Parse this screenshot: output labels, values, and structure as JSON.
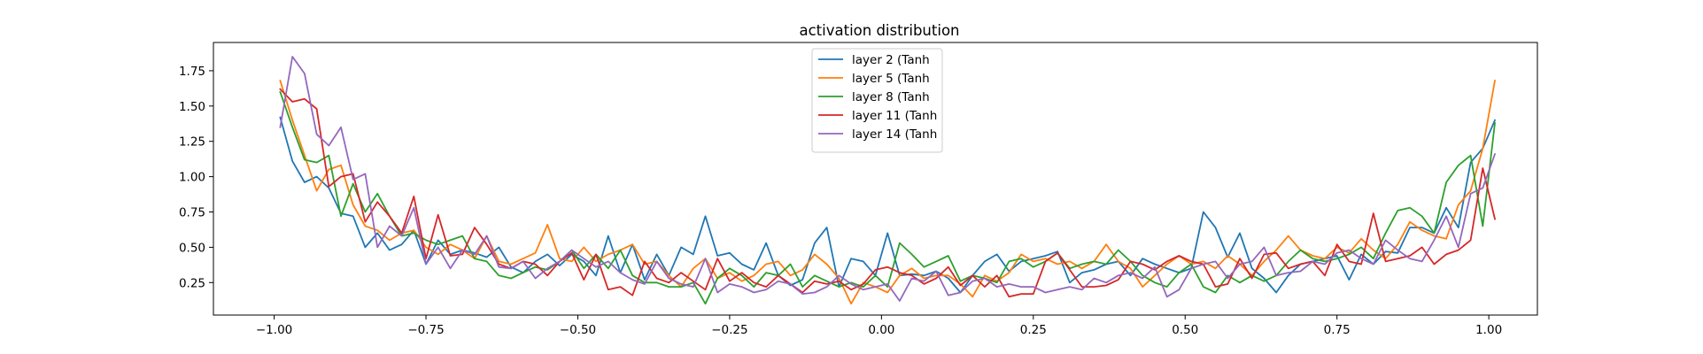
{
  "chart_data": {
    "type": "line",
    "title": "activation distribution",
    "xlabel": "",
    "ylabel": "",
    "xlim": [
      -1.1,
      1.08
    ],
    "ylim": [
      0.02,
      1.95
    ],
    "xticks": [
      -1.0,
      -0.75,
      -0.5,
      -0.25,
      0.0,
      0.25,
      0.5,
      0.75,
      1.0
    ],
    "xtick_labels": [
      "−1.00",
      "−0.75",
      "−0.50",
      "−0.25",
      "0.00",
      "0.25",
      "0.50",
      "0.75",
      "1.00"
    ],
    "yticks": [
      0.25,
      0.5,
      0.75,
      1.0,
      1.25,
      1.5,
      1.75
    ],
    "ytick_labels": [
      "0.25",
      "0.50",
      "0.75",
      "1.00",
      "1.25",
      "1.50",
      "1.75"
    ],
    "grid": false,
    "legend_position": "top-center",
    "x_start": -0.99,
    "x_step": 0.02,
    "series": [
      {
        "name": "layer 2 (Tanh",
        "color": "#1f77b4",
        "values": [
          1.42,
          1.11,
          0.96,
          1.0,
          0.92,
          0.74,
          0.72,
          0.5,
          0.6,
          0.48,
          0.52,
          0.62,
          0.38,
          0.55,
          0.45,
          0.48,
          0.46,
          0.43,
          0.5,
          0.36,
          0.32,
          0.4,
          0.45,
          0.37,
          0.45,
          0.4,
          0.3,
          0.58,
          0.32,
          0.52,
          0.27,
          0.45,
          0.3,
          0.5,
          0.45,
          0.72,
          0.44,
          0.46,
          0.38,
          0.34,
          0.53,
          0.3,
          0.23,
          0.27,
          0.53,
          0.64,
          0.22,
          0.42,
          0.4,
          0.3,
          0.6,
          0.3,
          0.31,
          0.3,
          0.33,
          0.28,
          0.18,
          0.3,
          0.4,
          0.45,
          0.33,
          0.4,
          0.42,
          0.44,
          0.47,
          0.25,
          0.32,
          0.34,
          0.38,
          0.4,
          0.3,
          0.42,
          0.38,
          0.35,
          0.32,
          0.35,
          0.75,
          0.64,
          0.43,
          0.6,
          0.35,
          0.28,
          0.18,
          0.3,
          0.38,
          0.4,
          0.42,
          0.44,
          0.27,
          0.45,
          0.38,
          0.47,
          0.46,
          0.64,
          0.64,
          0.6,
          0.78,
          0.64,
          1.1,
          1.2,
          1.4
        ]
      },
      {
        "name": "layer 5 (Tanh",
        "color": "#ff7f0e",
        "values": [
          1.68,
          1.4,
          1.15,
          0.9,
          1.05,
          1.08,
          0.8,
          0.65,
          0.62,
          0.55,
          0.6,
          0.62,
          0.5,
          0.45,
          0.52,
          0.48,
          0.42,
          0.58,
          0.4,
          0.38,
          0.42,
          0.46,
          0.66,
          0.42,
          0.4,
          0.5,
          0.4,
          0.45,
          0.48,
          0.52,
          0.38,
          0.4,
          0.3,
          0.22,
          0.35,
          0.42,
          0.28,
          0.32,
          0.26,
          0.3,
          0.38,
          0.4,
          0.3,
          0.34,
          0.45,
          0.38,
          0.28,
          0.1,
          0.25,
          0.22,
          0.18,
          0.3,
          0.35,
          0.28,
          0.3,
          0.3,
          0.24,
          0.15,
          0.3,
          0.26,
          0.32,
          0.45,
          0.4,
          0.42,
          0.38,
          0.4,
          0.35,
          0.4,
          0.52,
          0.4,
          0.35,
          0.22,
          0.3,
          0.38,
          0.44,
          0.38,
          0.4,
          0.35,
          0.44,
          0.38,
          0.3,
          0.4,
          0.48,
          0.58,
          0.48,
          0.44,
          0.42,
          0.5,
          0.46,
          0.56,
          0.48,
          0.42,
          0.52,
          0.68,
          0.62,
          0.58,
          0.56,
          0.8,
          0.9,
          1.2,
          1.68
        ]
      },
      {
        "name": "layer 8 (Tanh",
        "color": "#2ca02c",
        "values": [
          1.6,
          1.35,
          1.12,
          1.1,
          1.15,
          0.72,
          0.95,
          0.75,
          0.88,
          0.72,
          0.58,
          0.6,
          0.55,
          0.52,
          0.55,
          0.58,
          0.42,
          0.4,
          0.3,
          0.28,
          0.32,
          0.36,
          0.34,
          0.4,
          0.48,
          0.35,
          0.45,
          0.35,
          0.48,
          0.3,
          0.25,
          0.25,
          0.22,
          0.22,
          0.25,
          0.1,
          0.28,
          0.35,
          0.3,
          0.22,
          0.32,
          0.3,
          0.38,
          0.22,
          0.3,
          0.26,
          0.22,
          0.25,
          0.22,
          0.3,
          0.22,
          0.53,
          0.45,
          0.36,
          0.4,
          0.44,
          0.26,
          0.3,
          0.28,
          0.25,
          0.4,
          0.42,
          0.36,
          0.4,
          0.46,
          0.35,
          0.38,
          0.4,
          0.38,
          0.48,
          0.4,
          0.3,
          0.25,
          0.22,
          0.32,
          0.38,
          0.22,
          0.18,
          0.3,
          0.25,
          0.3,
          0.26,
          0.3,
          0.4,
          0.48,
          0.42,
          0.4,
          0.42,
          0.45,
          0.5,
          0.42,
          0.6,
          0.76,
          0.78,
          0.72,
          0.6,
          0.96,
          1.08,
          1.15,
          0.65,
          1.38
        ]
      },
      {
        "name": "layer 11 (Tanh",
        "color": "#d62728",
        "values": [
          1.62,
          1.53,
          1.55,
          1.48,
          0.93,
          1.0,
          1.02,
          0.68,
          0.82,
          0.72,
          0.6,
          0.86,
          0.42,
          0.73,
          0.44,
          0.45,
          0.64,
          0.52,
          0.38,
          0.35,
          0.4,
          0.38,
          0.3,
          0.4,
          0.46,
          0.27,
          0.45,
          0.2,
          0.22,
          0.16,
          0.4,
          0.28,
          0.25,
          0.32,
          0.26,
          0.2,
          0.42,
          0.26,
          0.32,
          0.25,
          0.22,
          0.3,
          0.24,
          0.18,
          0.26,
          0.24,
          0.26,
          0.2,
          0.24,
          0.34,
          0.36,
          0.32,
          0.3,
          0.24,
          0.28,
          0.36,
          0.23,
          0.3,
          0.22,
          0.3,
          0.15,
          0.17,
          0.17,
          0.4,
          0.46,
          0.34,
          0.22,
          0.22,
          0.23,
          0.27,
          0.4,
          0.38,
          0.34,
          0.4,
          0.44,
          0.4,
          0.38,
          0.22,
          0.24,
          0.42,
          0.28,
          0.45,
          0.46,
          0.35,
          0.38,
          0.4,
          0.3,
          0.52,
          0.4,
          0.38,
          0.74,
          0.4,
          0.42,
          0.44,
          0.5,
          0.38,
          0.45,
          0.48,
          0.55,
          1.06,
          0.7
        ]
      },
      {
        "name": "layer 14 (Tanh",
        "color": "#9467bd",
        "values": [
          1.35,
          1.85,
          1.73,
          1.3,
          1.22,
          1.35,
          0.98,
          1.02,
          0.5,
          0.65,
          0.58,
          0.78,
          0.38,
          0.5,
          0.35,
          0.48,
          0.45,
          0.58,
          0.36,
          0.35,
          0.4,
          0.28,
          0.35,
          0.4,
          0.48,
          0.42,
          0.36,
          0.4,
          0.32,
          0.27,
          0.24,
          0.4,
          0.28,
          0.24,
          0.22,
          0.42,
          0.18,
          0.24,
          0.22,
          0.18,
          0.2,
          0.26,
          0.24,
          0.17,
          0.18,
          0.22,
          0.3,
          0.24,
          0.2,
          0.22,
          0.24,
          0.12,
          0.28,
          0.26,
          0.33,
          0.16,
          0.18,
          0.26,
          0.28,
          0.22,
          0.24,
          0.22,
          0.22,
          0.18,
          0.2,
          0.22,
          0.2,
          0.28,
          0.25,
          0.3,
          0.32,
          0.28,
          0.36,
          0.15,
          0.2,
          0.35,
          0.38,
          0.4,
          0.28,
          0.38,
          0.4,
          0.5,
          0.3,
          0.32,
          0.33,
          0.4,
          0.38,
          0.46,
          0.48,
          0.42,
          0.38,
          0.55,
          0.48,
          0.42,
          0.4,
          0.55,
          0.72,
          0.5,
          0.88,
          0.92,
          1.16
        ]
      }
    ]
  }
}
